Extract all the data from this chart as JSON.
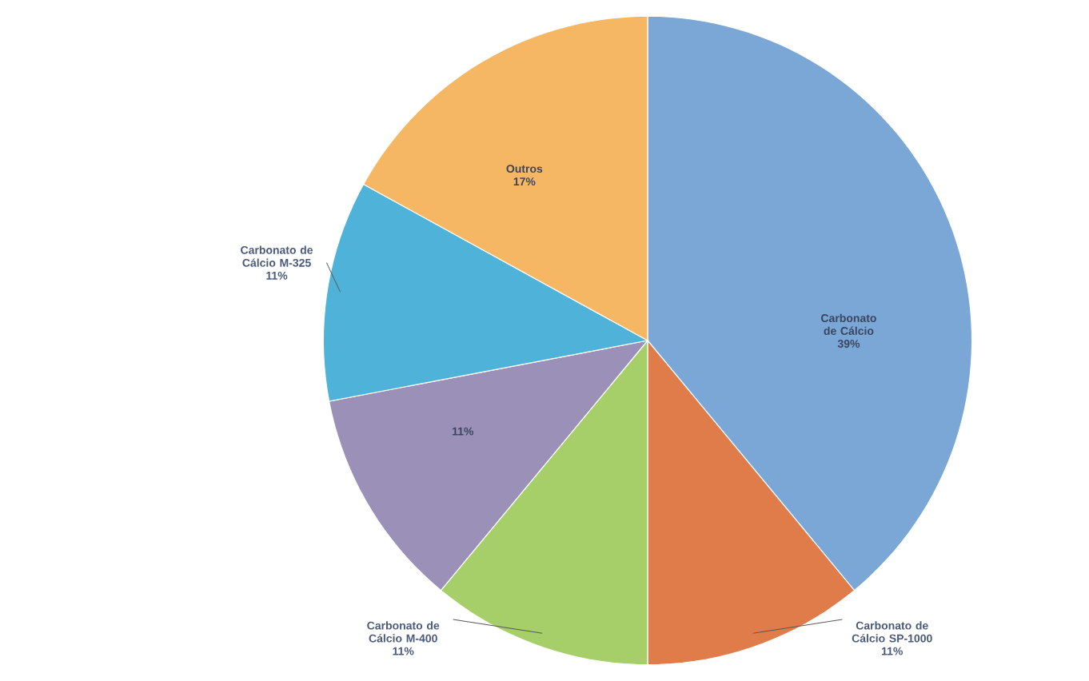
{
  "chart_data": {
    "type": "pie",
    "categories": [
      "Carbonato de Cálcio",
      "Carbonato de Cálcio SP-1000",
      "Carbonato de Cálcio M-400",
      null,
      "Carbonato de Cálcio M-325",
      "Outros"
    ],
    "values": [
      39,
      11,
      11,
      11,
      11,
      17
    ],
    "value_labels": [
      "39%",
      "11%",
      "11%",
      "11%",
      "11%",
      "17%"
    ],
    "colors": [
      "#7aa7d6",
      "#e07b4a",
      "#a6cf6a",
      "#9a90b8",
      "#4fb3d9",
      "#f5b764"
    ]
  }
}
